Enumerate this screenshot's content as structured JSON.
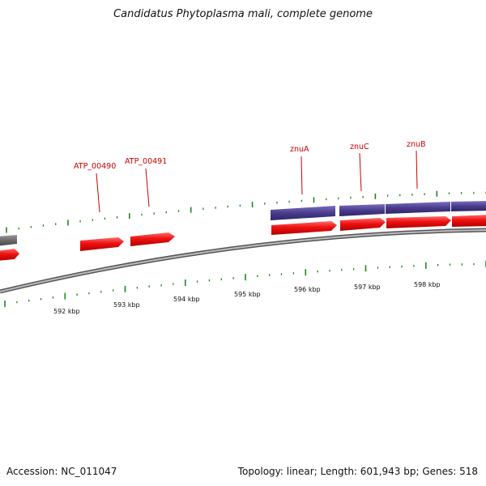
{
  "title": "Candidatus Phytoplasma mali, complete genome",
  "footer": {
    "accession": "Accession: NC_011047",
    "summary": "Topology: linear; Length: 601,943 bp; Genes: 518"
  },
  "genome_view": {
    "scale_labels": [
      "592 kbp",
      "593 kbp",
      "594 kbp",
      "595 kbp",
      "596 kbp",
      "597 kbp",
      "598 kbp"
    ],
    "gene_labels": [
      "ATP_00490",
      "ATP_00491",
      "znuA",
      "znuC",
      "znuB"
    ],
    "colors": {
      "backbone": "#8a8a8a",
      "cds": "#ee1111",
      "gene_purple": "#4a3c8c",
      "gray_feature": "#6a6a6a",
      "tick": "#1a8a1a",
      "label": "#cc0000"
    }
  }
}
